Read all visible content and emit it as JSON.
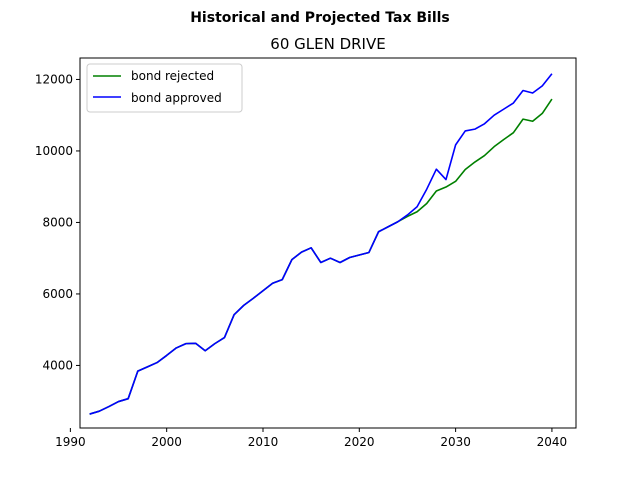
{
  "chart_data": {
    "type": "line",
    "suptitle": "Historical and Projected Tax Bills",
    "title": "60 GLEN DRIVE",
    "xlabel": "",
    "ylabel": "",
    "xlim": [
      1991,
      2042.5
    ],
    "ylim": [
      2250,
      12600
    ],
    "xticks": [
      1990,
      2000,
      2010,
      2020,
      2030,
      2040
    ],
    "yticks": [
      4000,
      6000,
      8000,
      10000,
      12000
    ],
    "legend_position": "top-left",
    "grid": false,
    "series": [
      {
        "name": "bond rejected",
        "color": "#008000",
        "points": [
          [
            1992,
            2640
          ],
          [
            1993,
            2720
          ],
          [
            1994,
            2850
          ],
          [
            1995,
            2990
          ],
          [
            1996,
            3070
          ],
          [
            1997,
            3840
          ],
          [
            1998,
            3960
          ],
          [
            1999,
            4080
          ],
          [
            2000,
            4280
          ],
          [
            2001,
            4490
          ],
          [
            2002,
            4610
          ],
          [
            2003,
            4620
          ],
          [
            2004,
            4410
          ],
          [
            2005,
            4610
          ],
          [
            2006,
            4780
          ],
          [
            2007,
            5420
          ],
          [
            2008,
            5680
          ],
          [
            2009,
            5880
          ],
          [
            2010,
            6090
          ],
          [
            2011,
            6300
          ],
          [
            2012,
            6400
          ],
          [
            2013,
            6960
          ],
          [
            2014,
            7170
          ],
          [
            2015,
            7290
          ],
          [
            2016,
            6880
          ],
          [
            2017,
            7000
          ],
          [
            2018,
            6880
          ],
          [
            2019,
            7020
          ],
          [
            2020,
            7090
          ],
          [
            2021,
            7160
          ],
          [
            2022,
            7740
          ],
          [
            2023,
            7880
          ],
          [
            2024,
            8020
          ],
          [
            2025,
            8170
          ],
          [
            2026,
            8300
          ],
          [
            2027,
            8530
          ],
          [
            2028,
            8880
          ],
          [
            2029,
            8990
          ],
          [
            2030,
            9150
          ],
          [
            2031,
            9480
          ],
          [
            2032,
            9690
          ],
          [
            2033,
            9870
          ],
          [
            2034,
            10120
          ],
          [
            2035,
            10320
          ],
          [
            2036,
            10510
          ],
          [
            2037,
            10890
          ],
          [
            2038,
            10830
          ],
          [
            2039,
            11050
          ],
          [
            2040,
            11450
          ]
        ]
      },
      {
        "name": "bond approved",
        "color": "#0000ff",
        "points": [
          [
            1992,
            2640
          ],
          [
            1993,
            2720
          ],
          [
            1994,
            2850
          ],
          [
            1995,
            2990
          ],
          [
            1996,
            3070
          ],
          [
            1997,
            3840
          ],
          [
            1998,
            3960
          ],
          [
            1999,
            4080
          ],
          [
            2000,
            4280
          ],
          [
            2001,
            4490
          ],
          [
            2002,
            4610
          ],
          [
            2003,
            4620
          ],
          [
            2004,
            4410
          ],
          [
            2005,
            4610
          ],
          [
            2006,
            4780
          ],
          [
            2007,
            5420
          ],
          [
            2008,
            5680
          ],
          [
            2009,
            5880
          ],
          [
            2010,
            6090
          ],
          [
            2011,
            6300
          ],
          [
            2012,
            6400
          ],
          [
            2013,
            6960
          ],
          [
            2014,
            7170
          ],
          [
            2015,
            7290
          ],
          [
            2016,
            6880
          ],
          [
            2017,
            7000
          ],
          [
            2018,
            6880
          ],
          [
            2019,
            7020
          ],
          [
            2020,
            7090
          ],
          [
            2021,
            7160
          ],
          [
            2022,
            7740
          ],
          [
            2023,
            7880
          ],
          [
            2024,
            8020
          ],
          [
            2025,
            8210
          ],
          [
            2026,
            8440
          ],
          [
            2027,
            8930
          ],
          [
            2028,
            9490
          ],
          [
            2029,
            9200
          ],
          [
            2030,
            10170
          ],
          [
            2031,
            10560
          ],
          [
            2032,
            10610
          ],
          [
            2033,
            10760
          ],
          [
            2034,
            11000
          ],
          [
            2035,
            11170
          ],
          [
            2036,
            11340
          ],
          [
            2037,
            11690
          ],
          [
            2038,
            11620
          ],
          [
            2039,
            11820
          ],
          [
            2040,
            12160
          ]
        ]
      }
    ]
  }
}
